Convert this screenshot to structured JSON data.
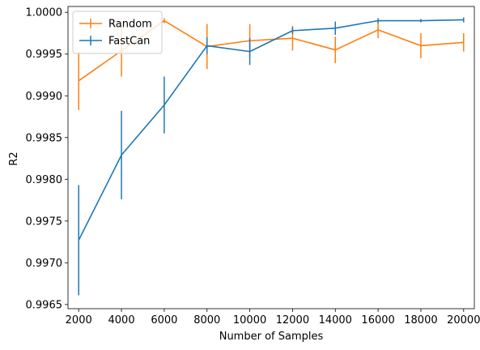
{
  "chart_data": {
    "type": "line",
    "title": "",
    "xlabel": "Number of Samples",
    "ylabel": "R2",
    "x": [
      2000,
      4000,
      6000,
      8000,
      10000,
      12000,
      14000,
      16000,
      18000,
      20000
    ],
    "xticks": [
      "2000",
      "4000",
      "6000",
      "8000",
      "10000",
      "12000",
      "14000",
      "16000",
      "18000",
      "20000"
    ],
    "yticks": [
      "0.9965",
      "0.9970",
      "0.9975",
      "0.9980",
      "0.9985",
      "0.9990",
      "0.9995",
      "1.0000"
    ],
    "xlim": [
      1500,
      20500
    ],
    "ylim": [
      0.99645,
      1.00007
    ],
    "grid": false,
    "legend_position": "top-left",
    "series": [
      {
        "name": "Random",
        "color": "#ff7f0e",
        "values": [
          0.99918,
          0.99954,
          0.9999,
          0.99959,
          0.99966,
          0.99969,
          0.99955,
          0.99979,
          0.9996,
          0.99964
        ],
        "errors": [
          0.00035,
          0.00031,
          3e-05,
          0.00027,
          0.0002,
          0.00015,
          0.00016,
          0.0001,
          0.00015,
          0.00011
        ]
      },
      {
        "name": "FastCan",
        "color": "#1f77b4",
        "values": [
          0.99727,
          0.99829,
          0.99889,
          0.9996,
          0.99953,
          0.99978,
          0.99981,
          0.9999,
          0.9999,
          0.99991
        ],
        "errors": [
          0.00066,
          0.00053,
          0.00034,
          0.0001,
          0.00016,
          4e-05,
          8e-05,
          3e-05,
          2e-05,
          3e-05
        ]
      }
    ]
  }
}
